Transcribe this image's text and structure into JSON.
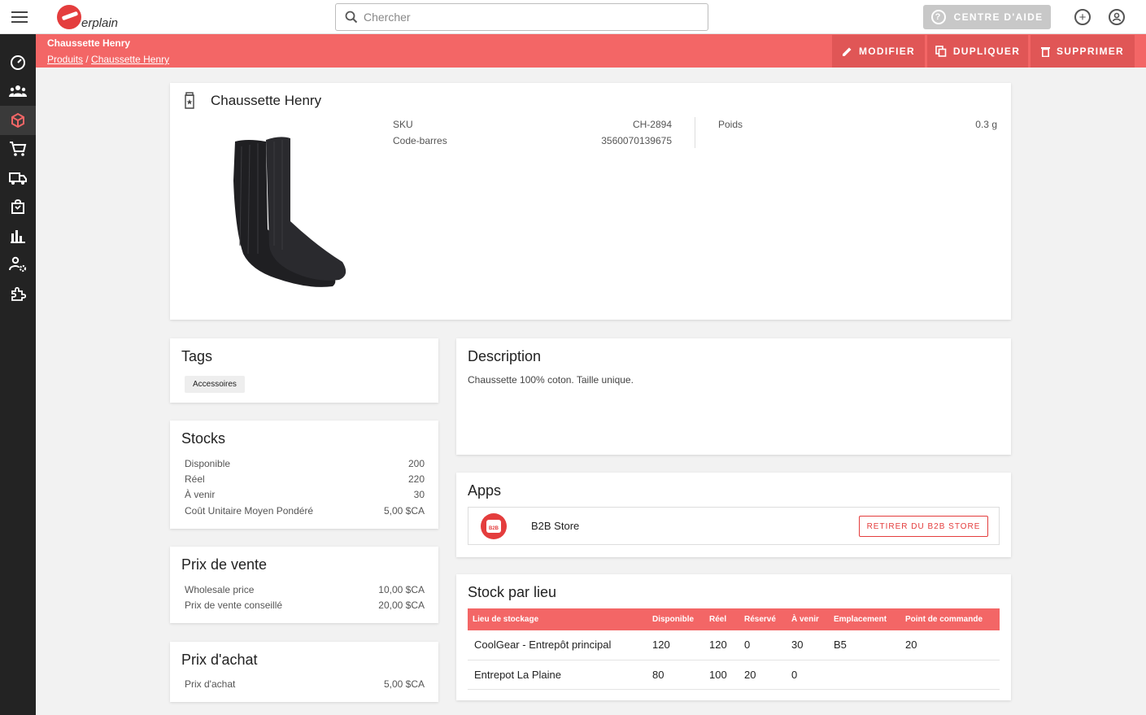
{
  "app": {
    "brand": "erplain",
    "search_placeholder": "Chercher",
    "help_label": "CENTRE D'AIDE"
  },
  "header": {
    "title": "Chaussette Henry",
    "breadcrumb": [
      "Produits",
      "Chaussette Henry"
    ],
    "actions": {
      "edit": "MODIFIER",
      "duplicate": "DUPLIQUER",
      "delete": "SUPPRIMER"
    }
  },
  "sidebar": {
    "items": [
      "dashboard-icon",
      "customers-icon",
      "products-icon",
      "sales-icon",
      "delivery-icon",
      "purchases-icon",
      "reports-icon",
      "users-settings-icon",
      "apps-icon"
    ],
    "active": 2
  },
  "product": {
    "name": "Chaussette Henry",
    "sku_label": "SKU",
    "sku": "CH-2894",
    "barcode_label": "Code-barres",
    "barcode": "3560070139675",
    "weight_label": "Poids",
    "weight": "0.3 g"
  },
  "tags": {
    "title": "Tags",
    "items": [
      "Accessoires"
    ]
  },
  "stocks": {
    "title": "Stocks",
    "rows": [
      {
        "label": "Disponible",
        "value": "200"
      },
      {
        "label": "Réel",
        "value": "220"
      },
      {
        "label": "À venir",
        "value": "30"
      },
      {
        "label": "Coût Unitaire Moyen Pondéré",
        "value": "5,00 $CA"
      }
    ]
  },
  "sale_price": {
    "title": "Prix de vente",
    "rows": [
      {
        "label": "Wholesale price",
        "value": "10,00 $CA"
      },
      {
        "label": "Prix de vente conseillé",
        "value": "20,00 $CA"
      }
    ]
  },
  "purchase_price": {
    "title": "Prix d'achat",
    "rows": [
      {
        "label": "Prix d'achat",
        "value": "5,00 $CA"
      }
    ]
  },
  "description": {
    "title": "Description",
    "text": "Chaussette 100% coton. Taille unique."
  },
  "apps": {
    "title": "Apps",
    "name": "B2B Store",
    "badge": "B2B",
    "button": "RETIRER DU B2B STORE"
  },
  "stock_by_location": {
    "title": "Stock par lieu",
    "columns": [
      "Lieu de stockage",
      "Disponible",
      "Réel",
      "Réservé",
      "À venir",
      "Emplacement",
      "Point de commande"
    ],
    "rows": [
      [
        "CoolGear - Entrepôt principal",
        "120",
        "120",
        "0",
        "30",
        "B5",
        "20"
      ],
      [
        "Entrepot La Plaine",
        "80",
        "100",
        "20",
        "0",
        "",
        ""
      ]
    ]
  },
  "colors": {
    "accent": "#f36666",
    "sidebar": "#232323",
    "brand": "#e43d3d"
  }
}
